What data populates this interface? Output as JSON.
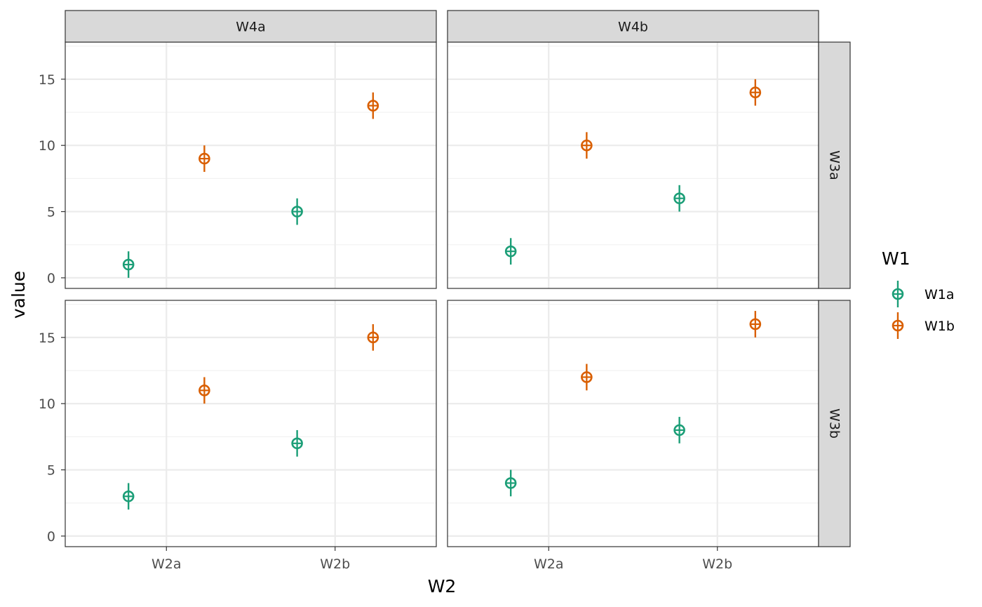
{
  "chart_data": {
    "type": "scatter",
    "geom": "point-with-errorbar",
    "xlabel": "W2",
    "ylabel": "value",
    "x_categories": [
      "W2a",
      "W2b"
    ],
    "y_ticks": [
      0,
      5,
      10,
      15
    ],
    "ylim": [
      -0.8,
      17.8
    ],
    "facet_cols": [
      "W4a",
      "W4b"
    ],
    "facet_rows": [
      "W3a",
      "W3b"
    ],
    "error_halfwidth": 1,
    "legend": {
      "title": "W1",
      "position": "right",
      "entries": [
        {
          "label": "W1a",
          "color": "#1b9e77"
        },
        {
          "label": "W1b",
          "color": "#d95f02"
        }
      ]
    },
    "series": [
      {
        "name": "W1a",
        "color": "#1b9e77",
        "points": [
          {
            "col": "W4a",
            "row": "W3a",
            "x": "W2a",
            "y": 1
          },
          {
            "col": "W4a",
            "row": "W3a",
            "x": "W2b",
            "y": 5
          },
          {
            "col": "W4b",
            "row": "W3a",
            "x": "W2a",
            "y": 2
          },
          {
            "col": "W4b",
            "row": "W3a",
            "x": "W2b",
            "y": 6
          },
          {
            "col": "W4a",
            "row": "W3b",
            "x": "W2a",
            "y": 3
          },
          {
            "col": "W4a",
            "row": "W3b",
            "x": "W2b",
            "y": 7
          },
          {
            "col": "W4b",
            "row": "W3b",
            "x": "W2a",
            "y": 4
          },
          {
            "col": "W4b",
            "row": "W3b",
            "x": "W2b",
            "y": 8
          }
        ]
      },
      {
        "name": "W1b",
        "color": "#d95f02",
        "points": [
          {
            "col": "W4a",
            "row": "W3a",
            "x": "W2a",
            "y": 9
          },
          {
            "col": "W4a",
            "row": "W3a",
            "x": "W2b",
            "y": 13
          },
          {
            "col": "W4b",
            "row": "W3a",
            "x": "W2a",
            "y": 10
          },
          {
            "col": "W4b",
            "row": "W3a",
            "x": "W2b",
            "y": 14
          },
          {
            "col": "W4a",
            "row": "W3b",
            "x": "W2a",
            "y": 11
          },
          {
            "col": "W4a",
            "row": "W3b",
            "x": "W2b",
            "y": 15
          },
          {
            "col": "W4b",
            "row": "W3b",
            "x": "W2a",
            "y": 12
          },
          {
            "col": "W4b",
            "row": "W3b",
            "x": "W2b",
            "y": 16
          }
        ]
      }
    ],
    "grid": true
  }
}
